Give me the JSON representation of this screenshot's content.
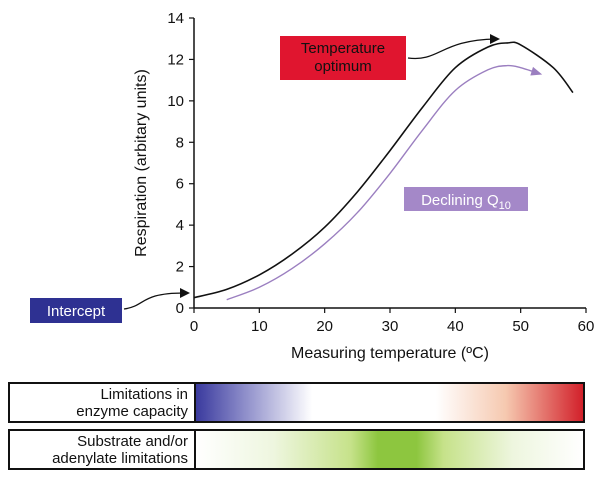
{
  "chart_data": {
    "type": "line",
    "xlabel": "Measuring temperature (ºC)",
    "ylabel": "Respiration (arbitary units)",
    "xlim": [
      0,
      60
    ],
    "ylim": [
      0,
      14
    ],
    "xticks": [
      "0",
      "10",
      "20",
      "30",
      "40",
      "50",
      "60"
    ],
    "yticks": [
      "0",
      "2",
      "4",
      "6",
      "8",
      "10",
      "12",
      "14"
    ],
    "grid": false,
    "series": [
      {
        "color": "#111111",
        "x": [
          0,
          5,
          10,
          15,
          20,
          25,
          30,
          35,
          40,
          45,
          48,
          50,
          55,
          58
        ],
        "y": [
          0.5,
          0.9,
          1.6,
          2.6,
          3.9,
          5.6,
          7.6,
          9.7,
          11.6,
          12.6,
          12.8,
          12.7,
          11.6,
          10.4
        ]
      },
      {
        "color": "#9b7fc0",
        "x": [
          5,
          10,
          15,
          20,
          25,
          30,
          35,
          40,
          45,
          48,
          50,
          53
        ],
        "y": [
          0.4,
          1.0,
          1.9,
          3.1,
          4.6,
          6.5,
          8.6,
          10.5,
          11.5,
          11.7,
          11.6,
          11.3
        ]
      }
    ],
    "annotations": {
      "temperature_optimum": "Temperature\noptimum",
      "declining_q10_main": "Declining Q",
      "declining_q10_sub": "10",
      "intercept": "Intercept"
    }
  },
  "colors": {
    "optimum_box": "#e0152f",
    "intercept_box": "#2e3192",
    "q10_box": "#a488c8",
    "enzyme_blue": "#3a3a9e",
    "enzyme_red": "#d2202a",
    "substrate_green": "#8dc63f"
  },
  "limitation_bars": [
    {
      "label_line1": "Limitations in",
      "label_line2": "enzyme capacity"
    },
    {
      "label_line1": "Substrate and/or",
      "label_line2": "adenylate limitations"
    }
  ]
}
